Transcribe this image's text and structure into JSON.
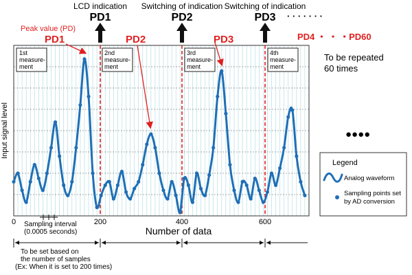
{
  "top_labels": {
    "lcd_indication": "LCD indication",
    "switching_1": "Switching of indication",
    "switching_2": "Switching of indication",
    "dots_right": "· · · · · · ·"
  },
  "pd_black": [
    "PD1",
    "PD2",
    "PD3"
  ],
  "pd_red": {
    "peak_label": "Peak value (PD)",
    "pd1": "PD1",
    "pd2": "PD2",
    "pd3": "PD3",
    "pd4_60": "PD4 ・ ・ ・PD60"
  },
  "measurements": [
    {
      "line1": "1st",
      "line2": "measure-",
      "line3": "ment"
    },
    {
      "line1": "2nd",
      "line2": "measure-",
      "line3": "ment"
    },
    {
      "line1": "3rd",
      "line2": "measure-",
      "line3": "ment"
    },
    {
      "line1": "4th",
      "line2": "measure-",
      "line3": "ment"
    }
  ],
  "repeat_note": {
    "line1": "To be repeated",
    "line2": "60 times"
  },
  "big_dots": "●●●●",
  "axis": {
    "ylabel": "Input signal level",
    "xlabel": "Number of data",
    "ticks": [
      "0",
      "200",
      "400",
      "600"
    ]
  },
  "sampling_interval": {
    "line1": "Sampling interval",
    "line2": "(0.0005 seconds)"
  },
  "bottom_note": {
    "line1": "To be set based on",
    "line2": "the number of samples",
    "line3": "(Ex: When it is set to 200 times)"
  },
  "legend": {
    "title": "Legend",
    "wave_label": "Analog waveform",
    "points_line1": "Sampling points set",
    "points_line2": "by AD conversion"
  },
  "colors": {
    "wave": "#1f6fb6",
    "grid": "#a8d8e0",
    "red": "#e02020",
    "black": "#111111"
  },
  "chart_data": {
    "type": "line",
    "xlim": [
      0,
      710
    ],
    "x": [
      0,
      10,
      20,
      30,
      40,
      50,
      60,
      70,
      80,
      90,
      100,
      110,
      120,
      130,
      140,
      150,
      160,
      170,
      180,
      190,
      200,
      210,
      220,
      230,
      240,
      250,
      260,
      270,
      280,
      290,
      300,
      310,
      320,
      330,
      340,
      350,
      360,
      370,
      380,
      390,
      400,
      410,
      420,
      430,
      440,
      450,
      460,
      470,
      480,
      490,
      500,
      510,
      520,
      530,
      540,
      550,
      560,
      570,
      580,
      590,
      600,
      610,
      620,
      630,
      640,
      650,
      660,
      670,
      680,
      690,
      700
    ],
    "y": [
      0.2,
      0.25,
      0.15,
      0.08,
      0.2,
      0.3,
      0.22,
      0.15,
      0.25,
      0.4,
      0.55,
      0.35,
      0.18,
      0.12,
      0.2,
      0.4,
      0.65,
      0.92,
      0.7,
      0.25,
      0.05,
      0.12,
      0.18,
      0.2,
      0.1,
      0.18,
      0.26,
      0.14,
      0.1,
      0.16,
      0.2,
      0.3,
      0.42,
      0.48,
      0.4,
      0.25,
      0.15,
      0.1,
      0.2,
      0.12,
      0.02,
      0.22,
      0.18,
      0.08,
      0.25,
      0.16,
      0.12,
      0.24,
      0.4,
      0.7,
      0.85,
      0.6,
      0.3,
      0.15,
      0.08,
      0.2,
      0.18,
      0.1,
      0.22,
      0.15,
      0.08,
      0.14,
      0.25,
      0.18,
      0.28,
      0.4,
      0.58,
      0.62,
      0.35,
      0.2,
      0.12
    ]
  }
}
